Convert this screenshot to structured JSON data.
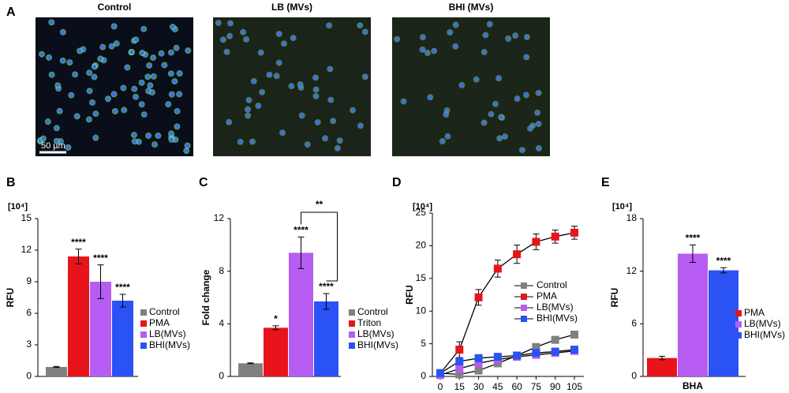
{
  "panel_a": {
    "label": "A",
    "images": [
      "Control",
      "LB (MVs)",
      "BHI (MVs)"
    ],
    "scale_bar": "50 µm"
  },
  "chart_data": [
    {
      "type": "bar",
      "label": "B",
      "unit_label": "[10⁴]",
      "y_label": "RFU",
      "ylim": [
        0,
        15
      ],
      "yticks": [
        0,
        3,
        6,
        9,
        12,
        15
      ],
      "series": [
        {
          "name": "Control",
          "color": "#808080",
          "values": [
            0.9
          ],
          "errors": [
            0.05
          ]
        },
        {
          "name": "PMA",
          "color": "#e8141c",
          "values": [
            11.4
          ],
          "errors": [
            0.7
          ],
          "annotations": [
            "****"
          ]
        },
        {
          "name": "LB(MVs)",
          "color": "#b65cf2",
          "values": [
            9.0
          ],
          "errors": [
            1.6
          ],
          "annotations": [
            "****"
          ]
        },
        {
          "name": "BHI(MVs)",
          "color": "#2a52f5",
          "values": [
            7.2
          ],
          "errors": [
            0.6
          ],
          "annotations": [
            "****"
          ]
        }
      ]
    },
    {
      "type": "bar",
      "label": "C",
      "y_label": "Fold change",
      "ylim": [
        0,
        12
      ],
      "yticks": [
        0,
        4,
        8,
        12
      ],
      "bracket_label": "**",
      "series": [
        {
          "name": "Control",
          "color": "#808080",
          "values": [
            1.0
          ],
          "errors": [
            0.03
          ]
        },
        {
          "name": "Triton",
          "color": "#e8141c",
          "values": [
            3.7
          ],
          "errors": [
            0.15
          ],
          "annotations": [
            "*"
          ]
        },
        {
          "name": "LB(MVs)",
          "color": "#b65cf2",
          "values": [
            9.4
          ],
          "errors": [
            1.2
          ],
          "annotations": [
            "****"
          ]
        },
        {
          "name": "BHI(MVs)",
          "color": "#2a52f5",
          "values": [
            5.7
          ],
          "errors": [
            0.6
          ],
          "annotations": [
            "****"
          ]
        }
      ]
    },
    {
      "type": "line",
      "label": "D",
      "unit_label": "[10⁴]",
      "y_label": "RFU",
      "x": [
        0,
        15,
        30,
        45,
        60,
        75,
        90,
        105
      ],
      "xlim": [
        0,
        105
      ],
      "xticks": [
        0,
        15,
        30,
        45,
        60,
        75,
        90,
        105
      ],
      "ylim": [
        0,
        25
      ],
      "yticks": [
        0,
        5,
        10,
        15,
        20,
        25
      ],
      "series": [
        {
          "name": "Control",
          "color": "#808080",
          "values": [
            0.5,
            0.3,
            0.9,
            2.0,
            3.2,
            4.5,
            5.6,
            6.4
          ]
        },
        {
          "name": "PMA",
          "color": "#e8141c",
          "values": [
            0.5,
            4.1,
            12.1,
            16.5,
            18.7,
            20.6,
            21.4,
            22.0
          ],
          "errors": [
            0.3,
            1.2,
            1.2,
            1.3,
            1.4,
            1.2,
            1.0,
            1.0
          ]
        },
        {
          "name": "LB(MVs)",
          "color": "#b65cf2",
          "values": [
            0.2,
            1.2,
            2.0,
            2.6,
            3.0,
            3.3,
            3.6,
            3.9
          ]
        },
        {
          "name": "BHI(MVs)",
          "color": "#2a52f5",
          "values": [
            0.5,
            2.3,
            2.8,
            3.0,
            3.2,
            3.6,
            3.8,
            4.1
          ]
        }
      ]
    },
    {
      "type": "bar",
      "label": "E",
      "unit_label": "[10⁴]",
      "y_label": "RFU",
      "categories": [
        "BHA"
      ],
      "ylim": [
        0,
        18
      ],
      "yticks": [
        0,
        6,
        12,
        18
      ],
      "series": [
        {
          "name": "PMA",
          "color": "#e8141c",
          "values": [
            2.1
          ],
          "errors": [
            0.2
          ]
        },
        {
          "name": "LB(MVs)",
          "color": "#b65cf2",
          "values": [
            14.0
          ],
          "errors": [
            1.0
          ],
          "annotations": [
            "****"
          ]
        },
        {
          "name": "BHI(MVs)",
          "color": "#2a52f5",
          "values": [
            12.1
          ],
          "errors": [
            0.3
          ],
          "annotations": [
            "****"
          ]
        }
      ]
    }
  ]
}
